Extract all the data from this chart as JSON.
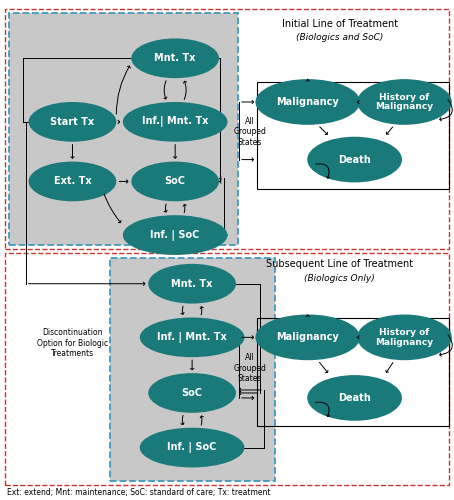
{
  "footnote": "Ext: extend; Mnt: maintenance; SoC: standard of care; Tx: treatment",
  "node_color": "#1a7a7a",
  "bg_gray": "#c8c8c8",
  "border_blue": "#4499bb",
  "border_red": "#cc3333",
  "top_title1": "Initial Line of Treatment",
  "top_title2": "(Biologics and SoC)",
  "bot_title1": "Subsequent Line of Treatment",
  "bot_title2": "(Biologics Only)",
  "disc_label": "Discontinuation\nOption for Biologic\nTreatments",
  "all_grouped1": "All\nGrouped\nStates",
  "all_grouped2": "All\nGrouped\nStates"
}
